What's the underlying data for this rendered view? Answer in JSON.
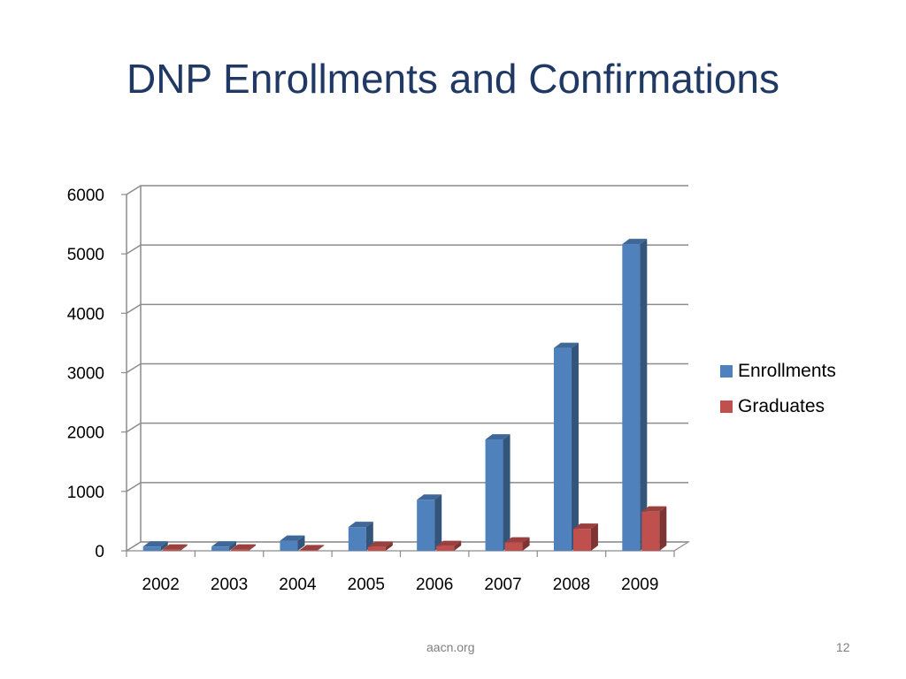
{
  "slide": {
    "title": "DNP Enrollments and Confirmations",
    "footer_source": "aacn.org",
    "page_number": "12"
  },
  "colors": {
    "enrollments": "#4f81bd",
    "graduates": "#c0504d",
    "title": "#1f3864"
  },
  "chart_data": {
    "type": "bar",
    "title": "",
    "xlabel": "",
    "ylabel": "",
    "categories": [
      "2002",
      "2003",
      "2004",
      "2005",
      "2006",
      "2007",
      "2008",
      "2009"
    ],
    "series": [
      {
        "name": "Enrollments",
        "values": [
          70,
          70,
          170,
          400,
          860,
          1875,
          3415,
          5165
        ]
      },
      {
        "name": "Graduates",
        "values": [
          20,
          20,
          10,
          65,
          80,
          140,
          370,
          660
        ]
      }
    ],
    "ylim": [
      0,
      6000
    ],
    "yticks": [
      "0",
      "1000",
      "2000",
      "3000",
      "4000",
      "5000",
      "6000"
    ],
    "grid": true,
    "legend_position": "right",
    "style": "3d-clustered-column"
  }
}
